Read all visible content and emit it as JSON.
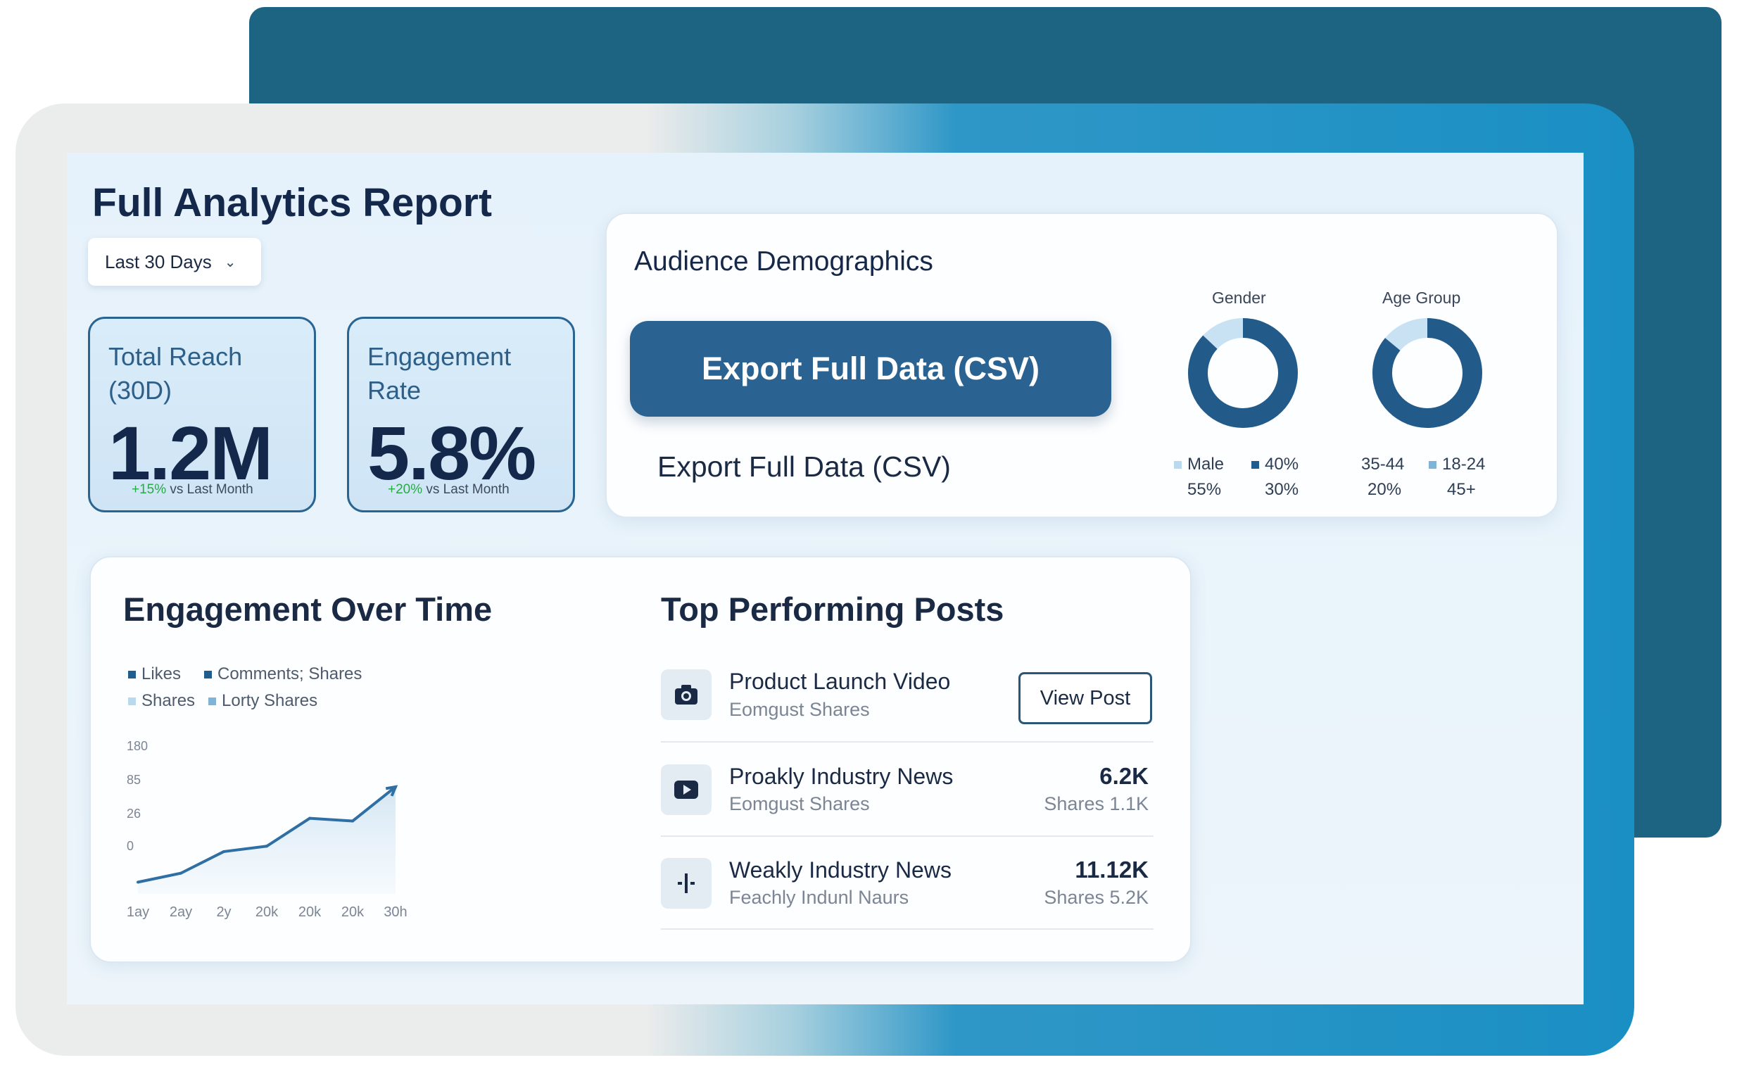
{
  "report": {
    "title": "Full Analytics Report",
    "date_range": "Last 30 Days"
  },
  "kpis": [
    {
      "label_line1": "Total Reach",
      "label_line2": "(30D)",
      "value": "1.2M",
      "delta_positive": "+15%",
      "delta_text": "vs Last Month"
    },
    {
      "label_line1": "Engagement",
      "label_line2": "Rate",
      "value": "5.8%",
      "delta_positive": "+20%",
      "delta_text": "vs Last Month"
    }
  ],
  "demographics": {
    "title": "Audience Demographics",
    "export_button": "Export Full Data (CSV)",
    "export_link": "Export Full Data (CSV)",
    "gender": {
      "title": "Gender",
      "legend_top": [
        "Male",
        "40%"
      ],
      "legend_bottom": [
        "55%",
        "30%"
      ],
      "dark_fraction": 0.87
    },
    "age": {
      "title": "Age Group",
      "legend_top": [
        "35-44",
        "18-24"
      ],
      "legend_bottom": [
        "20%",
        "45+"
      ],
      "dark_fraction": 0.86
    },
    "colors": {
      "dark": "#225b8a",
      "light": "#c9e2f3"
    }
  },
  "engagement": {
    "title": "Engagement Over Time",
    "legend": [
      "Likes",
      "Comments; Shares",
      "Shares",
      "Lorty Shares"
    ]
  },
  "chart_data": {
    "type": "area",
    "title": "Engagement Over Time",
    "x_tick_labels": [
      "1ay",
      "2ay",
      "2y",
      "20k",
      "20k",
      "20k",
      "30h"
    ],
    "y_tick_labels": [
      "180",
      "85",
      "26",
      "0"
    ],
    "legend": [
      "Likes",
      "Comments; Shares",
      "Shares",
      "Lorty Shares"
    ],
    "series": [
      {
        "values": [
          13,
          23,
          47,
          53,
          84,
          81,
          119
        ]
      }
    ],
    "y_plot_max": 180,
    "grid": false,
    "legend_position": "top-left"
  },
  "top_posts": {
    "title": "Top Performing Posts",
    "view_button": "View Post",
    "items": [
      {
        "icon": "camera-icon",
        "title": "Product Launch Video",
        "subtitle": "Eomgust Shares",
        "value": "",
        "shares": ""
      },
      {
        "icon": "play-icon",
        "title": "Proakly Industry News",
        "subtitle": "Eomgust Shares",
        "value": "6.2K",
        "shares": "Shares 1.1K"
      },
      {
        "icon": "plus-icon",
        "title": "Weakly Industry News",
        "subtitle": "Feachly Indunl Naurs",
        "value": "11.12K",
        "shares": "Shares 5.2K"
      }
    ]
  }
}
